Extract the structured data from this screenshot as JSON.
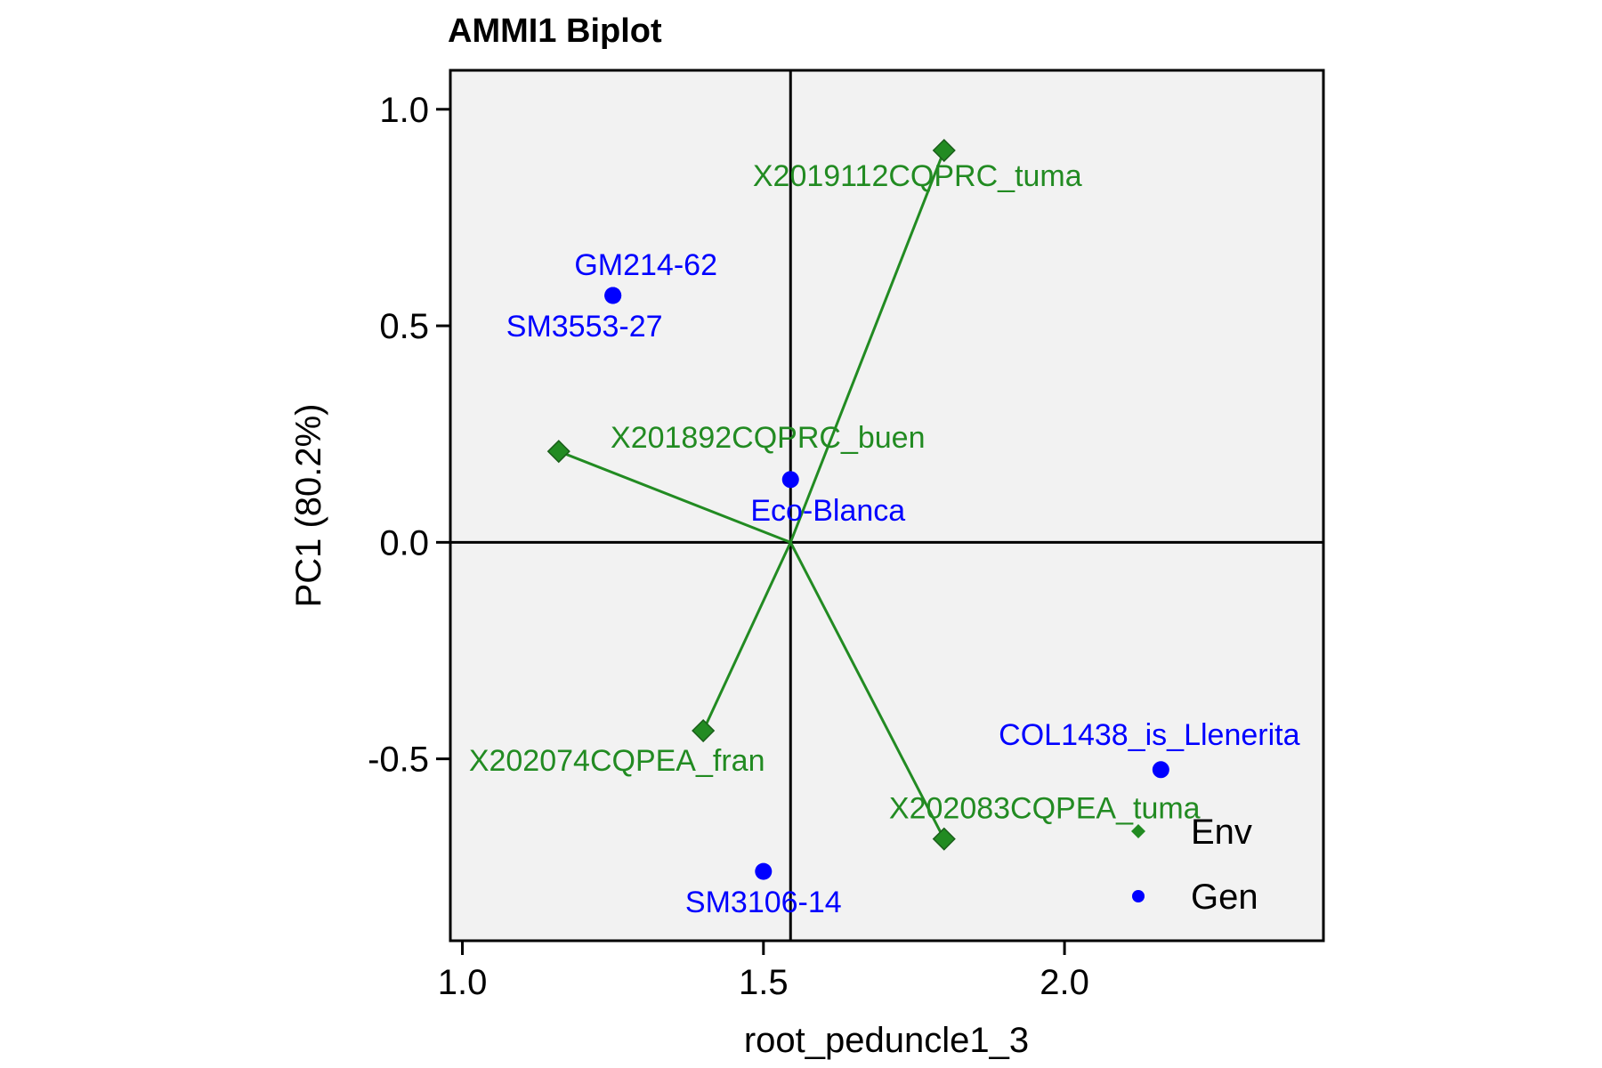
{
  "chart_data": {
    "type": "scatter",
    "title": "AMMI1 Biplot",
    "xlabel": "root_peduncle1_3",
    "ylabel": "PC1 (80.2%)",
    "xlim": [
      0.98,
      2.43
    ],
    "ylim": [
      -0.92,
      1.09
    ],
    "x_ticks": [
      1.0,
      1.5,
      2.0
    ],
    "x_tick_labels": [
      "1.0",
      "1.5",
      "2.0"
    ],
    "y_ticks": [
      -0.5,
      0.0,
      0.5,
      1.0
    ],
    "y_tick_labels": [
      "-0.5",
      "0.0",
      "0.5",
      "1.0"
    ],
    "reference_lines": {
      "x": 1.545,
      "y": 0.0
    },
    "grid": false,
    "legend_position": "bottom-right",
    "colors": {
      "Env": "#228b22",
      "Gen": "#0000ff",
      "background": "#f2f2f2"
    },
    "series": [
      {
        "name": "Env",
        "marker": "diamond",
        "points": [
          {
            "label": "X2019112CQPRC_tuma",
            "x": 1.8,
            "y": 0.905
          },
          {
            "label": "X201892CQPRC_buen",
            "x": 1.16,
            "y": 0.21
          },
          {
            "label": "X202074CQPEA_fran",
            "x": 1.4,
            "y": -0.435
          },
          {
            "label": "X202083CQPEA_tuma",
            "x": 1.8,
            "y": -0.685
          }
        ]
      },
      {
        "name": "Gen",
        "marker": "circle",
        "points": [
          {
            "label": "GM214-62",
            "x": 1.25,
            "y": 0.57
          },
          {
            "label": "SM3553-27",
            "x": 1.25,
            "y": 0.57
          },
          {
            "label": "Eco-Blanca",
            "x": 1.545,
            "y": 0.145
          },
          {
            "label": "COL1438_is_Llenerita",
            "x": 2.16,
            "y": -0.525
          },
          {
            "label": "SM3106-14",
            "x": 1.5,
            "y": -0.76
          }
        ]
      }
    ]
  }
}
